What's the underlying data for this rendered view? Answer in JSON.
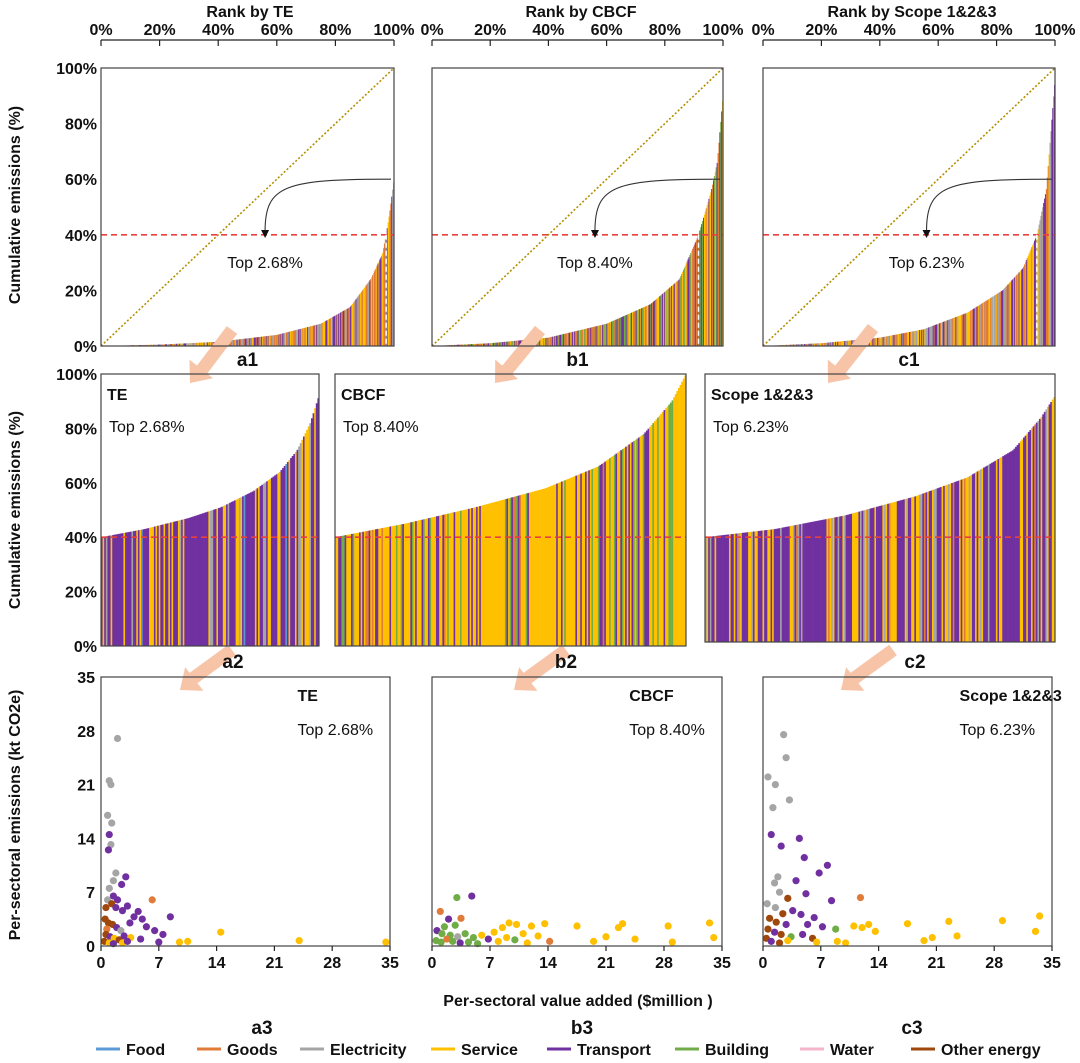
{
  "figure": {
    "column_titles": [
      "Rank by TE",
      "Rank by CBCF",
      "Rank by Scope 1&2&3"
    ],
    "row1_ylabel": "Cumulative emissions (%)",
    "row2_ylabel": "Cumulative emissions (%)",
    "row3_ylabel": "Per-sectoral emissions (kt CO2e)",
    "row3_xlabel": "Per-sectoral value added ($million )",
    "threshold_percent": 40
  },
  "colors": {
    "Food": "#5b9bd5",
    "Goods": "#e07b39",
    "Electricity": "#a5a5a5",
    "Service": "#ffc000",
    "Transport": "#7030a0",
    "Building": "#70ad47",
    "Water": "#f4b6c8",
    "Other energy": "#9e480e",
    "threshold_line": "#e8403c",
    "diagonal": "#b38f00",
    "arrow": "#f7c4a8"
  },
  "legend": [
    "Food",
    "Goods",
    "Electricity",
    "Service",
    "Transport",
    "Building",
    "Water",
    "Other energy"
  ],
  "chart_data": [
    {
      "id": "a1",
      "type": "area",
      "label": "a1",
      "title": "Rank by TE",
      "x_ticks": [
        "0%",
        "20%",
        "40%",
        "60%",
        "80%",
        "100%"
      ],
      "y_ticks": [
        "0%",
        "20%",
        "40%",
        "60%",
        "80%",
        "100%"
      ],
      "xlim": [
        0,
        100
      ],
      "ylim": [
        0,
        100
      ],
      "curve": [
        [
          0,
          0
        ],
        [
          20,
          0.5
        ],
        [
          40,
          1.5
        ],
        [
          60,
          4
        ],
        [
          75,
          8
        ],
        [
          85,
          14
        ],
        [
          92,
          24
        ],
        [
          96,
          33
        ],
        [
          97.3,
          40
        ],
        [
          98.5,
          48
        ],
        [
          100,
          60
        ]
      ],
      "threshold": 40,
      "top_rank": 97.32,
      "annotation": "Top 2.68%",
      "dominant_colors": [
        "Service",
        "Goods",
        "Transport",
        "Electricity"
      ]
    },
    {
      "id": "b1",
      "type": "area",
      "label": "b1",
      "title": "Rank by CBCF",
      "x_ticks": [
        "0%",
        "20%",
        "40%",
        "60%",
        "80%",
        "100%"
      ],
      "y_ticks": [
        "0%",
        "20%",
        "40%",
        "60%",
        "80%",
        "100%"
      ],
      "xlim": [
        0,
        100
      ],
      "ylim": [
        0,
        100
      ],
      "curve": [
        [
          0,
          0
        ],
        [
          20,
          1
        ],
        [
          40,
          3
        ],
        [
          60,
          8
        ],
        [
          75,
          15
        ],
        [
          85,
          24
        ],
        [
          91.6,
          40
        ],
        [
          96,
          56
        ],
        [
          98,
          66
        ],
        [
          100,
          90
        ]
      ],
      "threshold": 40,
      "top_rank": 91.6,
      "annotation": "Top 8.40%",
      "dominant_colors": [
        "Service",
        "Goods",
        "Transport",
        "Building"
      ]
    },
    {
      "id": "c1",
      "type": "area",
      "label": "c1",
      "title": "Rank by Scope 1&2&3",
      "x_ticks": [
        "0%",
        "20%",
        "40%",
        "60%",
        "80%",
        "100%"
      ],
      "y_ticks": [
        "0%",
        "20%",
        "40%",
        "60%",
        "80%",
        "100%"
      ],
      "xlim": [
        0,
        100
      ],
      "ylim": [
        0,
        100
      ],
      "curve": [
        [
          0,
          0
        ],
        [
          20,
          1
        ],
        [
          40,
          3
        ],
        [
          55,
          6
        ],
        [
          70,
          12
        ],
        [
          82,
          20
        ],
        [
          89,
          28
        ],
        [
          93.8,
          40
        ],
        [
          97,
          56
        ],
        [
          100,
          96
        ]
      ],
      "threshold": 40,
      "top_rank": 93.77,
      "annotation": "Top 6.23%",
      "dominant_colors": [
        "Service",
        "Goods",
        "Transport",
        "Electricity"
      ]
    },
    {
      "id": "a2",
      "type": "area",
      "label": "a2",
      "title": "TE",
      "annotation": "Top 2.68%",
      "y_ticks": [
        "0%",
        "20%",
        "40%",
        "60%",
        "80%",
        "100%"
      ],
      "ylim": [
        0,
        100
      ],
      "curve": [
        [
          0,
          40
        ],
        [
          0.2,
          43
        ],
        [
          0.4,
          47
        ],
        [
          0.55,
          51
        ],
        [
          0.7,
          57
        ],
        [
          0.82,
          64
        ],
        [
          0.9,
          72
        ],
        [
          0.96,
          82
        ],
        [
          1,
          92
        ]
      ],
      "threshold": 40,
      "dominant_colors": [
        "Transport",
        "Service",
        "Electricity",
        "Food"
      ]
    },
    {
      "id": "b2",
      "type": "area",
      "label": "b2",
      "title": "CBCF",
      "annotation": "Top 8.40%",
      "ylim": [
        0,
        100
      ],
      "curve": [
        [
          0,
          40
        ],
        [
          0.2,
          45
        ],
        [
          0.4,
          51
        ],
        [
          0.6,
          58
        ],
        [
          0.75,
          66
        ],
        [
          0.88,
          78
        ],
        [
          0.96,
          90
        ],
        [
          1,
          100
        ]
      ],
      "threshold": 40,
      "dominant_colors": [
        "Service",
        "Transport",
        "Building",
        "Goods"
      ]
    },
    {
      "id": "c2",
      "type": "area",
      "label": "c2",
      "title": "Scope 1&2&3",
      "annotation": "Top 6.23%",
      "ylim": [
        0,
        100
      ],
      "curve": [
        [
          0,
          40
        ],
        [
          0.2,
          43
        ],
        [
          0.4,
          48
        ],
        [
          0.6,
          55
        ],
        [
          0.75,
          62
        ],
        [
          0.88,
          72
        ],
        [
          0.96,
          84
        ],
        [
          1,
          92
        ]
      ],
      "threshold": 40,
      "dominant_colors": [
        "Transport",
        "Service",
        "Electricity",
        "Goods"
      ]
    },
    {
      "id": "a3",
      "type": "scatter",
      "label": "a3",
      "title": "TE",
      "annotation": "Top 2.68%",
      "x_ticks": [
        "0",
        "7",
        "14",
        "21",
        "28",
        "35"
      ],
      "y_ticks": [
        "0",
        "7",
        "14",
        "21",
        "28",
        "35"
      ],
      "xlim": [
        0,
        35
      ],
      "ylim": [
        0,
        35
      ],
      "points": [
        [
          2,
          27,
          "Electricity"
        ],
        [
          1,
          21.5,
          "Electricity"
        ],
        [
          1.2,
          21,
          "Electricity"
        ],
        [
          0.8,
          17,
          "Electricity"
        ],
        [
          1.3,
          16,
          "Electricity"
        ],
        [
          1,
          14.5,
          "Transport"
        ],
        [
          1.2,
          13.2,
          "Electricity"
        ],
        [
          0.9,
          12.5,
          "Transport"
        ],
        [
          1.8,
          9.5,
          "Electricity"
        ],
        [
          1.5,
          8.5,
          "Electricity"
        ],
        [
          2.5,
          8,
          "Transport"
        ],
        [
          3,
          9,
          "Transport"
        ],
        [
          1,
          7.5,
          "Electricity"
        ],
        [
          1.5,
          6.5,
          "Transport"
        ],
        [
          2,
          6,
          "Transport"
        ],
        [
          0.8,
          6,
          "Electricity"
        ],
        [
          1.3,
          5.5,
          "Other energy"
        ],
        [
          0.6,
          5,
          "Other energy"
        ],
        [
          1.8,
          5,
          "Transport"
        ],
        [
          2.6,
          4.6,
          "Transport"
        ],
        [
          3.2,
          5.2,
          "Transport"
        ],
        [
          4.5,
          4.5,
          "Transport"
        ],
        [
          6.2,
          6,
          "Goods"
        ],
        [
          4,
          3.8,
          "Transport"
        ],
        [
          5,
          3.5,
          "Transport"
        ],
        [
          3.5,
          3,
          "Transport"
        ],
        [
          5.5,
          2.5,
          "Transport"
        ],
        [
          6.5,
          2,
          "Transport"
        ],
        [
          8.4,
          3.8,
          "Transport"
        ],
        [
          7.5,
          1.5,
          "Transport"
        ],
        [
          0.5,
          3.5,
          "Other energy"
        ],
        [
          0.9,
          3,
          "Other energy"
        ],
        [
          1.4,
          2.8,
          "Other energy"
        ],
        [
          0.7,
          2.2,
          "Goods"
        ],
        [
          1.9,
          2.4,
          "Transport"
        ],
        [
          2.4,
          2,
          "Electricity"
        ],
        [
          0.6,
          1.5,
          "Other energy"
        ],
        [
          1.1,
          1.2,
          "Transport"
        ],
        [
          1.6,
          1,
          "Service"
        ],
        [
          2.2,
          0.8,
          "Other energy"
        ],
        [
          2.8,
          1.3,
          "Transport"
        ],
        [
          3.6,
          1.1,
          "Service"
        ],
        [
          4.8,
          0.9,
          "Transport"
        ],
        [
          0.4,
          0.6,
          "Other energy"
        ],
        [
          1,
          0.4,
          "Service"
        ],
        [
          1.5,
          0.3,
          "Transport"
        ],
        [
          2.6,
          0.4,
          "Service"
        ],
        [
          3.2,
          0.6,
          "Transport"
        ],
        [
          7,
          0.5,
          "Transport"
        ],
        [
          9.5,
          0.5,
          "Service"
        ],
        [
          10.5,
          0.6,
          "Service"
        ],
        [
          14.5,
          1.8,
          "Service"
        ],
        [
          24,
          0.7,
          "Service"
        ],
        [
          34.5,
          0.5,
          "Service"
        ]
      ]
    },
    {
      "id": "b3",
      "type": "scatter",
      "label": "b3",
      "title": "CBCF",
      "annotation": "Top 8.40%",
      "x_ticks": [
        "0",
        "7",
        "14",
        "21",
        "28",
        "35"
      ],
      "y_ticks": [
        "0",
        "7",
        "14",
        "21",
        "28",
        "35"
      ],
      "xlim": [
        0,
        35
      ],
      "ylim": [
        0,
        35
      ],
      "points": [
        [
          3,
          6.3,
          "Building"
        ],
        [
          4.8,
          6.5,
          "Transport"
        ],
        [
          1,
          4.5,
          "Goods"
        ],
        [
          2,
          3.5,
          "Transport"
        ],
        [
          3.5,
          3.6,
          "Goods"
        ],
        [
          1.5,
          2.5,
          "Building"
        ],
        [
          2.8,
          2.7,
          "Building"
        ],
        [
          0.6,
          2,
          "Transport"
        ],
        [
          1.2,
          1.6,
          "Building"
        ],
        [
          2.2,
          1.4,
          "Building"
        ],
        [
          3.1,
          1.2,
          "Electricity"
        ],
        [
          4,
          1.6,
          "Building"
        ],
        [
          5,
          1.1,
          "Building"
        ],
        [
          6,
          1.4,
          "Service"
        ],
        [
          6.8,
          0.9,
          "Transport"
        ],
        [
          0.5,
          0.7,
          "Building"
        ],
        [
          1.1,
          0.5,
          "Building"
        ],
        [
          1.8,
          0.9,
          "Goods"
        ],
        [
          2.5,
          0.6,
          "Building"
        ],
        [
          3.4,
          0.4,
          "Transport"
        ],
        [
          4.4,
          0.5,
          "Building"
        ],
        [
          5.5,
          0.3,
          "Building"
        ],
        [
          7.5,
          1.8,
          "Service"
        ],
        [
          8.5,
          2.4,
          "Service"
        ],
        [
          9.3,
          3,
          "Service"
        ],
        [
          10.2,
          2.8,
          "Service"
        ],
        [
          11,
          1.6,
          "Service"
        ],
        [
          12,
          2.6,
          "Service"
        ],
        [
          12.8,
          1.3,
          "Service"
        ],
        [
          13.6,
          2.9,
          "Service"
        ],
        [
          14.2,
          0.6,
          "Goods"
        ],
        [
          10,
          0.8,
          "Building"
        ],
        [
          11.5,
          0.4,
          "Service"
        ],
        [
          9,
          1.1,
          "Service"
        ],
        [
          8,
          0.6,
          "Service"
        ],
        [
          17.5,
          2.6,
          "Service"
        ],
        [
          19.5,
          0.6,
          "Service"
        ],
        [
          21,
          1.2,
          "Service"
        ],
        [
          22.5,
          2.4,
          "Service"
        ],
        [
          23,
          2.9,
          "Service"
        ],
        [
          24.5,
          0.9,
          "Service"
        ],
        [
          28.5,
          2.6,
          "Service"
        ],
        [
          29,
          0.5,
          "Service"
        ],
        [
          33.5,
          3,
          "Service"
        ],
        [
          34,
          1.1,
          "Service"
        ]
      ]
    },
    {
      "id": "c3",
      "type": "scatter",
      "label": "c3",
      "title": "Scope 1&2&3",
      "annotation": "Top 6.23%",
      "x_ticks": [
        "0",
        "7",
        "14",
        "21",
        "28",
        "35"
      ],
      "y_ticks": [
        "0",
        "7",
        "14",
        "21",
        "28",
        "35"
      ],
      "xlim": [
        0,
        35
      ],
      "ylim": [
        0,
        35
      ],
      "points": [
        [
          2.5,
          27.5,
          "Electricity"
        ],
        [
          2.8,
          24.5,
          "Electricity"
        ],
        [
          0.6,
          22,
          "Electricity"
        ],
        [
          1.5,
          21,
          "Electricity"
        ],
        [
          3.2,
          19,
          "Electricity"
        ],
        [
          1.2,
          18,
          "Electricity"
        ],
        [
          1,
          14.5,
          "Transport"
        ],
        [
          4.4,
          14,
          "Transport"
        ],
        [
          2.2,
          13,
          "Transport"
        ],
        [
          5,
          11.5,
          "Transport"
        ],
        [
          7.8,
          10.5,
          "Transport"
        ],
        [
          6.8,
          9.5,
          "Transport"
        ],
        [
          1.8,
          9,
          "Electricity"
        ],
        [
          4,
          8.5,
          "Transport"
        ],
        [
          1.4,
          8.2,
          "Electricity"
        ],
        [
          2,
          7,
          "Electricity"
        ],
        [
          3,
          6.2,
          "Other energy"
        ],
        [
          5.2,
          6.8,
          "Transport"
        ],
        [
          8.3,
          5.9,
          "Transport"
        ],
        [
          11.8,
          6.3,
          "Goods"
        ],
        [
          0.5,
          5.5,
          "Electricity"
        ],
        [
          1.5,
          5,
          "Electricity"
        ],
        [
          3.6,
          4.6,
          "Transport"
        ],
        [
          2.4,
          4.2,
          "Other energy"
        ],
        [
          4.6,
          4.1,
          "Transport"
        ],
        [
          6.2,
          3.7,
          "Transport"
        ],
        [
          0.8,
          3.6,
          "Other energy"
        ],
        [
          1.6,
          3.1,
          "Other energy"
        ],
        [
          2.8,
          2.8,
          "Transport"
        ],
        [
          5.4,
          2.8,
          "Transport"
        ],
        [
          7.2,
          2.5,
          "Transport"
        ],
        [
          8.8,
          2.2,
          "Building"
        ],
        [
          0.6,
          2.2,
          "Other energy"
        ],
        [
          1.4,
          1.8,
          "Transport"
        ],
        [
          2.2,
          1.5,
          "Other energy"
        ],
        [
          3.4,
          1.2,
          "Building"
        ],
        [
          4.8,
          1.5,
          "Transport"
        ],
        [
          6,
          1,
          "Other energy"
        ],
        [
          0.4,
          1,
          "Other energy"
        ],
        [
          1,
          0.6,
          "Transport"
        ],
        [
          2,
          0.4,
          "Other energy"
        ],
        [
          3,
          0.7,
          "Service"
        ],
        [
          6.5,
          0.5,
          "Service"
        ],
        [
          9,
          0.6,
          "Service"
        ],
        [
          10,
          0.4,
          "Service"
        ],
        [
          11,
          2.6,
          "Service"
        ],
        [
          12,
          2.4,
          "Service"
        ],
        [
          12.8,
          2.8,
          "Service"
        ],
        [
          13.6,
          1.9,
          "Service"
        ],
        [
          17.5,
          2.9,
          "Service"
        ],
        [
          19.5,
          0.7,
          "Service"
        ],
        [
          20.5,
          1.1,
          "Service"
        ],
        [
          22.5,
          3.2,
          "Service"
        ],
        [
          23.5,
          1.3,
          "Service"
        ],
        [
          29,
          3.3,
          "Service"
        ],
        [
          33.5,
          3.9,
          "Service"
        ],
        [
          33,
          1.9,
          "Service"
        ]
      ]
    }
  ]
}
